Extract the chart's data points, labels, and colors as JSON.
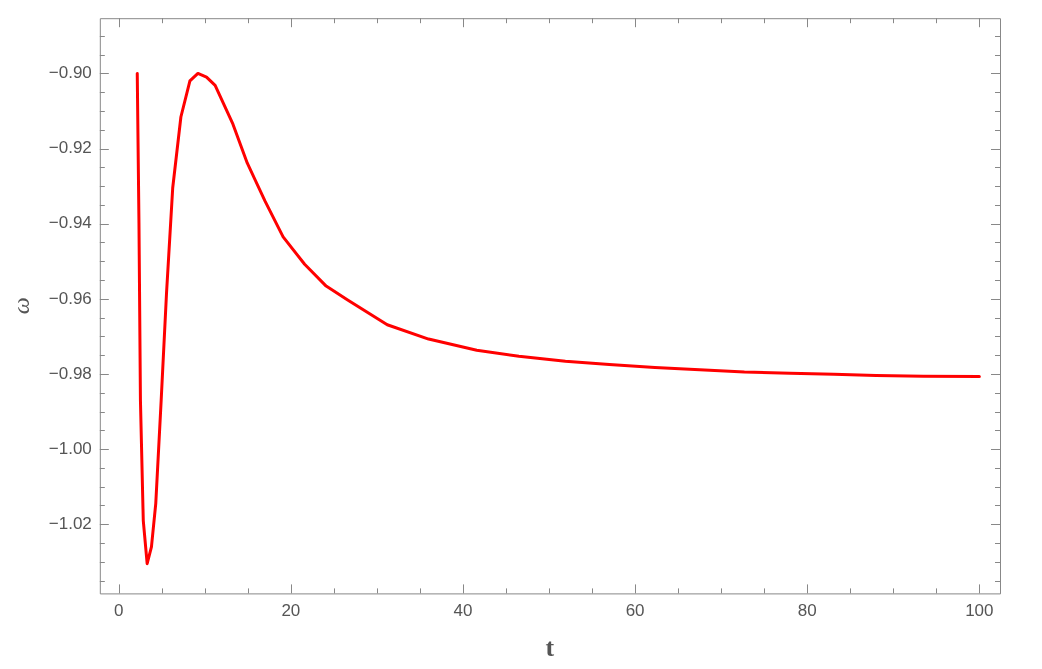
{
  "chart_data": {
    "type": "line",
    "xlabel": "t",
    "ylabel": "ω",
    "x": [
      2.15,
      2.35,
      2.52,
      2.85,
      3.3,
      3.8,
      4.3,
      4.93,
      5.55,
      6.27,
      7.22,
      8.27,
      9.2,
      10.2,
      11.2,
      13.27,
      14.94,
      17.0,
      19.1,
      21.6,
      24.1,
      26.6,
      31.2,
      36,
      41.6,
      46.5,
      51.9,
      57,
      62.3,
      67.5,
      72.7,
      78,
      83.1,
      88,
      93.5,
      100
    ],
    "series": [
      {
        "color": "#ff0000",
        "values": [
          -0.9,
          -0.94,
          -0.987,
          -1.019,
          -1.0305,
          -1.026,
          -1.0145,
          -0.987,
          -0.9585,
          -0.9305,
          -0.9116,
          -0.902,
          -0.9,
          -0.901,
          -0.9032,
          -0.9135,
          -0.9239,
          -0.934,
          -0.9435,
          -0.9508,
          -0.9566,
          -0.9603,
          -0.9669,
          -0.9707,
          -0.9737,
          -0.9753,
          -0.9766,
          -0.9775,
          -0.9783,
          -0.9789,
          -0.9795,
          -0.9798,
          -0.9801,
          -0.9804,
          -0.9806,
          -0.9807
        ]
      }
    ],
    "xlim": [
      -2.2,
      102.4
    ],
    "ylim": [
      -1.0384,
      -0.8853
    ],
    "xticks": [
      {
        "value": 0,
        "label": "0"
      },
      {
        "value": 5,
        "label": null
      },
      {
        "value": 10,
        "label": null
      },
      {
        "value": 15,
        "label": null
      },
      {
        "value": 20,
        "label": "20"
      },
      {
        "value": 25,
        "label": null
      },
      {
        "value": 30,
        "label": null
      },
      {
        "value": 35,
        "label": null
      },
      {
        "value": 40,
        "label": "40"
      },
      {
        "value": 45,
        "label": null
      },
      {
        "value": 50,
        "label": null
      },
      {
        "value": 55,
        "label": null
      },
      {
        "value": 60,
        "label": "60"
      },
      {
        "value": 65,
        "label": null
      },
      {
        "value": 70,
        "label": null
      },
      {
        "value": 75,
        "label": null
      },
      {
        "value": 80,
        "label": "80"
      },
      {
        "value": 85,
        "label": null
      },
      {
        "value": 90,
        "label": null
      },
      {
        "value": 95,
        "label": null
      },
      {
        "value": 100,
        "label": "100"
      }
    ],
    "yticks": [
      {
        "value": -1.035,
        "label": null
      },
      {
        "value": -1.02,
        "label": "−1.02"
      },
      {
        "value": -1.025,
        "label": null
      },
      {
        "value": -1.03,
        "label": null
      },
      {
        "value": -1.015,
        "label": null
      },
      {
        "value": -1.01,
        "label": null
      },
      {
        "value": -1.005,
        "label": null
      },
      {
        "value": -1.0,
        "label": "−1.00"
      },
      {
        "value": -0.995,
        "label": null
      },
      {
        "value": -0.99,
        "label": null
      },
      {
        "value": -0.985,
        "label": null
      },
      {
        "value": -0.98,
        "label": "−0.98"
      },
      {
        "value": -0.975,
        "label": null
      },
      {
        "value": -0.97,
        "label": null
      },
      {
        "value": -0.965,
        "label": null
      },
      {
        "value": -0.96,
        "label": "−0.96"
      },
      {
        "value": -0.955,
        "label": null
      },
      {
        "value": -0.95,
        "label": null
      },
      {
        "value": -0.945,
        "label": null
      },
      {
        "value": -0.94,
        "label": "−0.94"
      },
      {
        "value": -0.935,
        "label": null
      },
      {
        "value": -0.93,
        "label": null
      },
      {
        "value": -0.925,
        "label": null
      },
      {
        "value": -0.92,
        "label": "−0.92"
      },
      {
        "value": -0.915,
        "label": null
      },
      {
        "value": -0.91,
        "label": null
      },
      {
        "value": -0.905,
        "label": null
      },
      {
        "value": -0.9,
        "label": "−0.90"
      },
      {
        "value": -0.895,
        "label": null
      },
      {
        "value": -0.89,
        "label": null
      }
    ],
    "grid": false,
    "legend": false,
    "marker": "none",
    "line_style": "solid"
  }
}
